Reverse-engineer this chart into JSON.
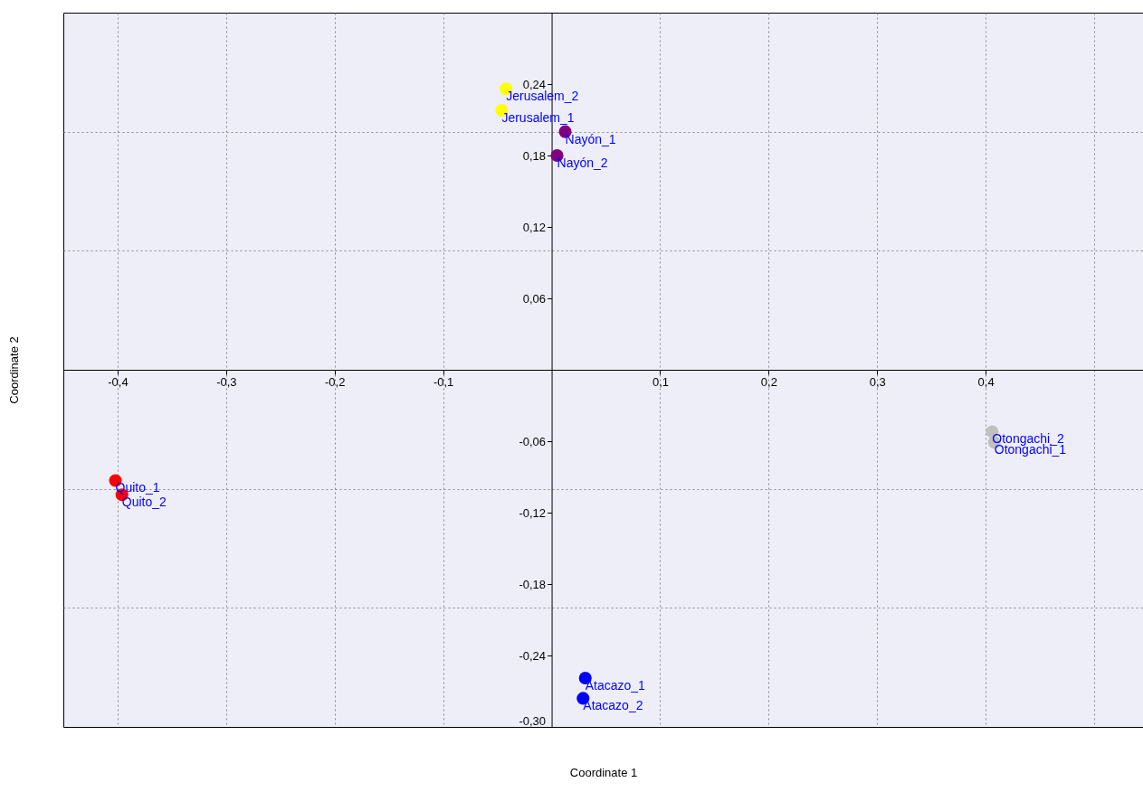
{
  "chart_data": {
    "type": "scatter",
    "xlabel": "Coordinate 1",
    "ylabel": "Coordinate 2",
    "x": [
      -0.042,
      -0.046,
      0.0125,
      0.005,
      -0.402,
      -0.396,
      0.031,
      0.029,
      0.406,
      0.408
    ],
    "values": [
      0.236,
      0.218,
      0.2,
      0.18,
      -0.093,
      -0.105,
      -0.259,
      -0.276,
      -0.052,
      -0.061
    ],
    "colors": [
      "#ffff00",
      "#ffff00",
      "#800080",
      "#800080",
      "#ff0000",
      "#ff0000",
      "#0000ff",
      "#0000ff",
      "#c0c0c0",
      "#c0c0c0"
    ],
    "marker": "circle",
    "grid": true,
    "xlim": [
      -0.45,
      0.545
    ],
    "xticks": [
      {
        "value": -0.4,
        "label": "-0,4"
      },
      {
        "value": -0.3,
        "label": "-0,3"
      },
      {
        "value": -0.2,
        "label": "-0,2"
      },
      {
        "value": -0.1,
        "label": "-0,1"
      },
      {
        "value": 0.1,
        "label": "0,1"
      },
      {
        "value": 0.2,
        "label": "0,2"
      },
      {
        "value": 0.3,
        "label": "0,3"
      },
      {
        "value": 0.4,
        "label": "0,4"
      },
      {
        "value": 0.5,
        "label": null
      }
    ],
    "ylim": [
      -0.3,
      0.3
    ],
    "yticks": [
      {
        "value": 0.24,
        "label": "0,24"
      },
      {
        "value": 0.18,
        "label": "0,18"
      },
      {
        "value": 0.12,
        "label": "0,12"
      },
      {
        "value": 0.06,
        "label": "0,06"
      },
      {
        "value": -0.06,
        "label": "-0,06"
      },
      {
        "value": -0.12,
        "label": "-0,12"
      },
      {
        "value": -0.18,
        "label": "-0,18"
      },
      {
        "value": -0.24,
        "label": "-0,24"
      },
      {
        "value": -0.3,
        "label": "-0,30"
      },
      {
        "value": 0.2,
        "label": null
      },
      {
        "value": 0.1,
        "label": null
      },
      {
        "value": -0.1,
        "label": null
      },
      {
        "value": -0.2,
        "label": null
      }
    ],
    "annotations": [
      {
        "text": "Jerusalem_2",
        "x": -0.042,
        "y": 0.236
      },
      {
        "text": "Jerusalem_1",
        "x": -0.046,
        "y": 0.218
      },
      {
        "text": "Nayón_1",
        "x": 0.0125,
        "y": 0.2
      },
      {
        "text": "Nayón_2",
        "x": 0.005,
        "y": 0.18
      },
      {
        "text": "Quito_1",
        "x": -0.402,
        "y": -0.093
      },
      {
        "text": "Quito_2",
        "x": -0.396,
        "y": -0.105
      },
      {
        "text": "Atacazo_1",
        "x": 0.031,
        "y": -0.259
      },
      {
        "text": "Atacazo_2",
        "x": 0.029,
        "y": -0.276
      },
      {
        "text": "Otongachi_2",
        "x": 0.406,
        "y": -0.052
      },
      {
        "text": "Otongachi_1",
        "x": 0.408,
        "y": -0.061
      }
    ]
  }
}
